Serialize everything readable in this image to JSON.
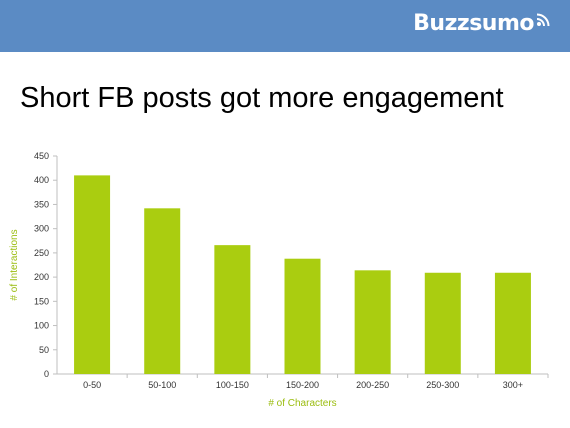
{
  "brand": {
    "name": "Buzzsumo",
    "icon": "rss-signal-icon",
    "header_color": "#5b8bc4"
  },
  "slide": {
    "title": "Short FB posts got more engagement"
  },
  "chart_data": {
    "type": "bar",
    "categories": [
      "0-50",
      "50-100",
      "100-150",
      "150-200",
      "200-250",
      "250-300",
      "300+"
    ],
    "values": [
      410,
      342,
      266,
      238,
      214,
      209,
      209
    ],
    "xlabel": "# of Characters",
    "ylabel": "# of Interactions",
    "ylim": [
      0,
      450
    ],
    "yticks": [
      0,
      50,
      100,
      150,
      200,
      250,
      300,
      350,
      400,
      450
    ],
    "bar_color": "#aacd10",
    "label_color": "#9bbd10",
    "grid": false,
    "legend": "none"
  }
}
